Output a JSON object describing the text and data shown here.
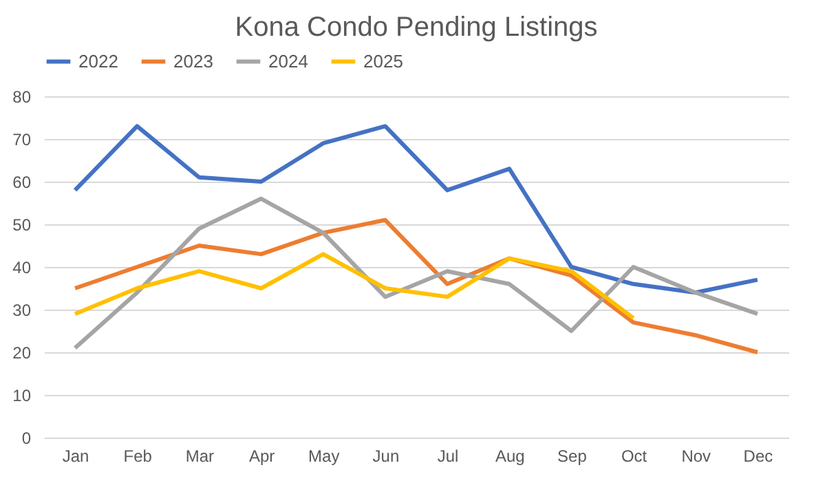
{
  "chart_data": {
    "type": "line",
    "title": "Kona Condo Pending Listings",
    "categories": [
      "Jan",
      "Feb",
      "Mar",
      "Apr",
      "May",
      "Jun",
      "Jul",
      "Aug",
      "Sep",
      "Oct",
      "Nov",
      "Dec"
    ],
    "series": [
      {
        "name": "2022",
        "color": "#4472c4",
        "values": [
          58,
          73,
          61,
          60,
          69,
          73,
          58,
          63,
          40,
          36,
          34,
          37
        ]
      },
      {
        "name": "2023",
        "color": "#ed7d31",
        "values": [
          35,
          40,
          45,
          43,
          48,
          51,
          36,
          42,
          38,
          27,
          24,
          20
        ]
      },
      {
        "name": "2024",
        "color": "#a5a5a5",
        "values": [
          21,
          34,
          49,
          56,
          48,
          33,
          39,
          36,
          25,
          40,
          34,
          29
        ]
      },
      {
        "name": "2025",
        "color": "#ffc000",
        "values": [
          29,
          35,
          39,
          35,
          43,
          35,
          33,
          42,
          39,
          28,
          null,
          null
        ]
      }
    ],
    "ylim": [
      0,
      80
    ],
    "yticks": [
      0,
      10,
      20,
      30,
      40,
      50,
      60,
      70,
      80
    ],
    "grid": "y",
    "legend": "top",
    "marker": "none",
    "line_style": "solid"
  }
}
